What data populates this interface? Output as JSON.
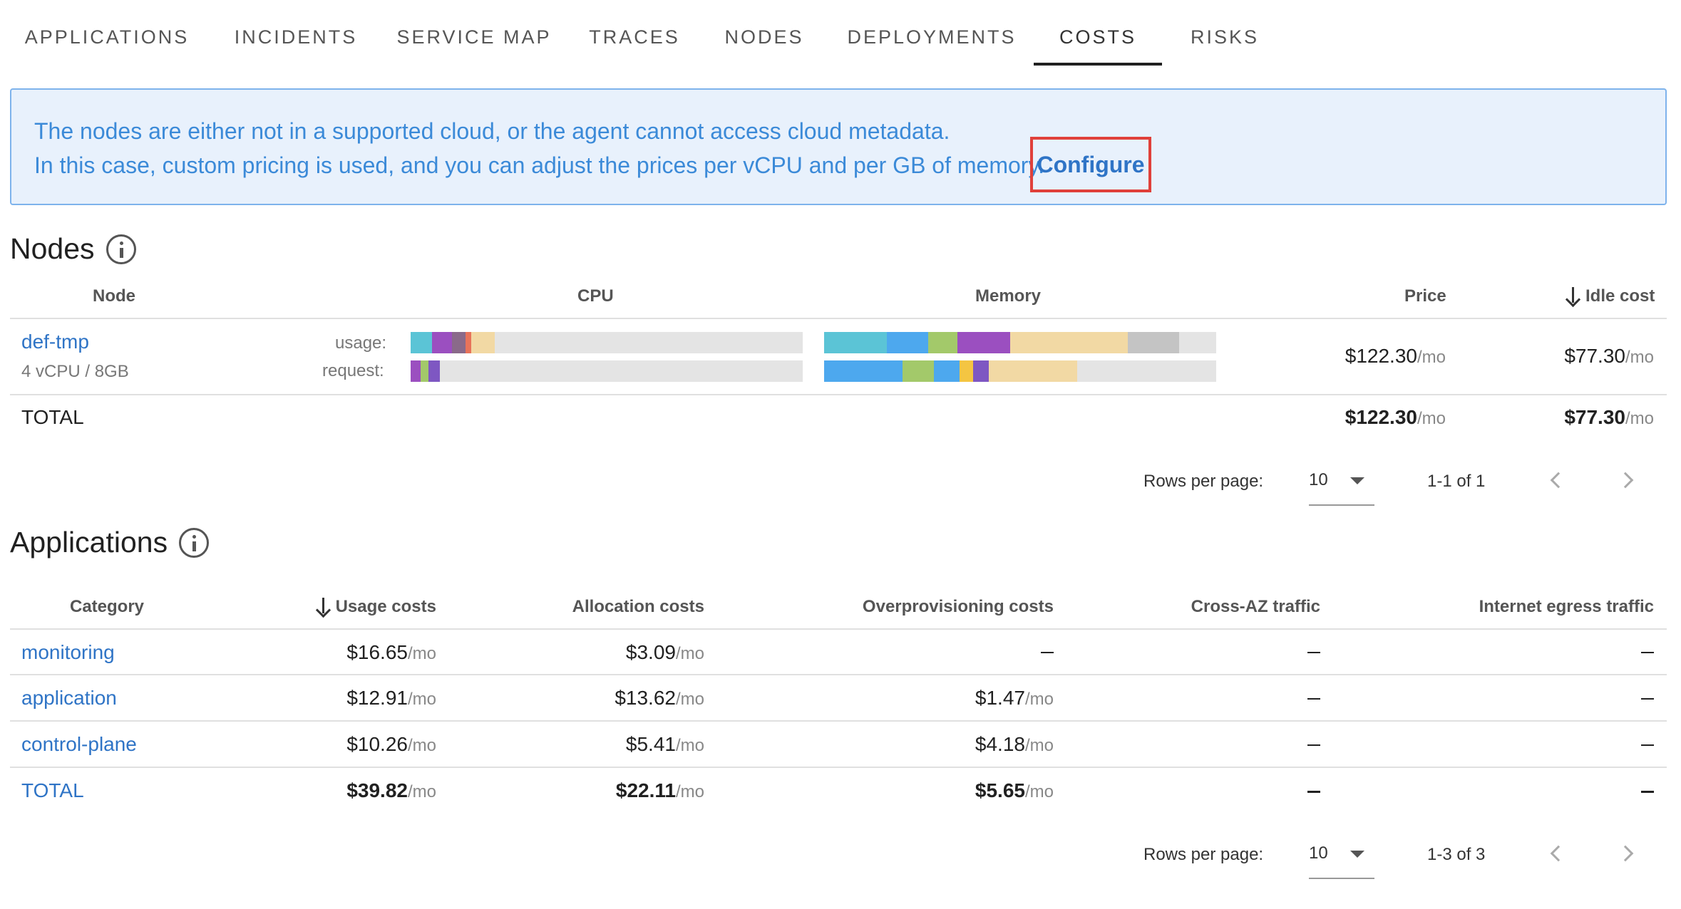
{
  "tabs": [
    {
      "label": "APPLICATIONS"
    },
    {
      "label": "INCIDENTS"
    },
    {
      "label": "SERVICE MAP"
    },
    {
      "label": "TRACES"
    },
    {
      "label": "NODES"
    },
    {
      "label": "DEPLOYMENTS"
    },
    {
      "label": "COSTS",
      "active": true
    },
    {
      "label": "RISKS"
    }
  ],
  "alert": {
    "line1": "The nodes are either not in a supported cloud, or the agent cannot access cloud metadata.",
    "line2": "In this case, custom pricing is used, and you can adjust the prices per vCPU and per GB of memory.",
    "configure_label": "Configure"
  },
  "nodes": {
    "title": "Nodes",
    "headers": {
      "node": "Node",
      "cpu": "CPU",
      "memory": "Memory",
      "price": "Price",
      "idle_cost": "Idle cost"
    },
    "rows": [
      {
        "name": "def-tmp",
        "spec": "4 vCPU / 8GB",
        "usage_label": "usage:",
        "request_label": "request:",
        "cpu_usage_segments": [
          {
            "color": "#5bc4d6",
            "fraction": 0.055
          },
          {
            "color": "#9b4fc0",
            "fraction": 0.05
          },
          {
            "color": "#8a6a8a",
            "fraction": 0.035
          },
          {
            "color": "#e8735a",
            "fraction": 0.015
          },
          {
            "color": "#f2d9a4",
            "fraction": 0.06
          }
        ],
        "cpu_request_segments": [
          {
            "color": "#9b4fc0",
            "fraction": 0.025
          },
          {
            "color": "#a3c96a",
            "fraction": 0.02
          },
          {
            "color": "#7e57c2",
            "fraction": 0.03
          }
        ],
        "mem_usage_segments": [
          {
            "color": "#5bc4d6",
            "fraction": 0.16
          },
          {
            "color": "#4da8ee",
            "fraction": 0.105
          },
          {
            "color": "#a3c96a",
            "fraction": 0.075
          },
          {
            "color": "#9b4fc0",
            "fraction": 0.135
          },
          {
            "color": "#f2d9a4",
            "fraction": 0.3
          },
          {
            "color": "#c4c4c4",
            "fraction": 0.13
          }
        ],
        "mem_request_segments": [
          {
            "color": "#4da8ee",
            "fraction": 0.2
          },
          {
            "color": "#a3c96a",
            "fraction": 0.08
          },
          {
            "color": "#4da8ee",
            "fraction": 0.065
          },
          {
            "color": "#f4c542",
            "fraction": 0.035
          },
          {
            "color": "#7e57c2",
            "fraction": 0.04
          },
          {
            "color": "#f2d9a4",
            "fraction": 0.225
          }
        ],
        "price": "$122.30",
        "idle_cost": "$77.30"
      }
    ],
    "total": {
      "label": "TOTAL",
      "price": "$122.30",
      "idle_cost": "$77.30"
    },
    "pager": {
      "rows_per_page_label": "Rows per page:",
      "rows_per_page": "10",
      "range": "1-1 of 1"
    }
  },
  "applications": {
    "title": "Applications",
    "headers": {
      "category": "Category",
      "usage": "Usage costs",
      "allocation": "Allocation costs",
      "overprov": "Overprovisioning costs",
      "cross_az": "Cross-AZ traffic",
      "egress": "Internet egress traffic"
    },
    "rows": [
      {
        "category": "monitoring",
        "usage": "$16.65",
        "allocation": "$3.09",
        "overprov": ""
      },
      {
        "category": "application",
        "usage": "$12.91",
        "allocation": "$13.62",
        "overprov": "$1.47"
      },
      {
        "category": "control-plane",
        "usage": "$10.26",
        "allocation": "$5.41",
        "overprov": "$4.18"
      }
    ],
    "total": {
      "label": "TOTAL",
      "usage": "$39.82",
      "allocation": "$22.11",
      "overprov": "$5.65"
    },
    "pager": {
      "rows_per_page_label": "Rows per page:",
      "rows_per_page": "10",
      "range": "1-3 of 3"
    }
  },
  "per_month_suffix": "/mo"
}
